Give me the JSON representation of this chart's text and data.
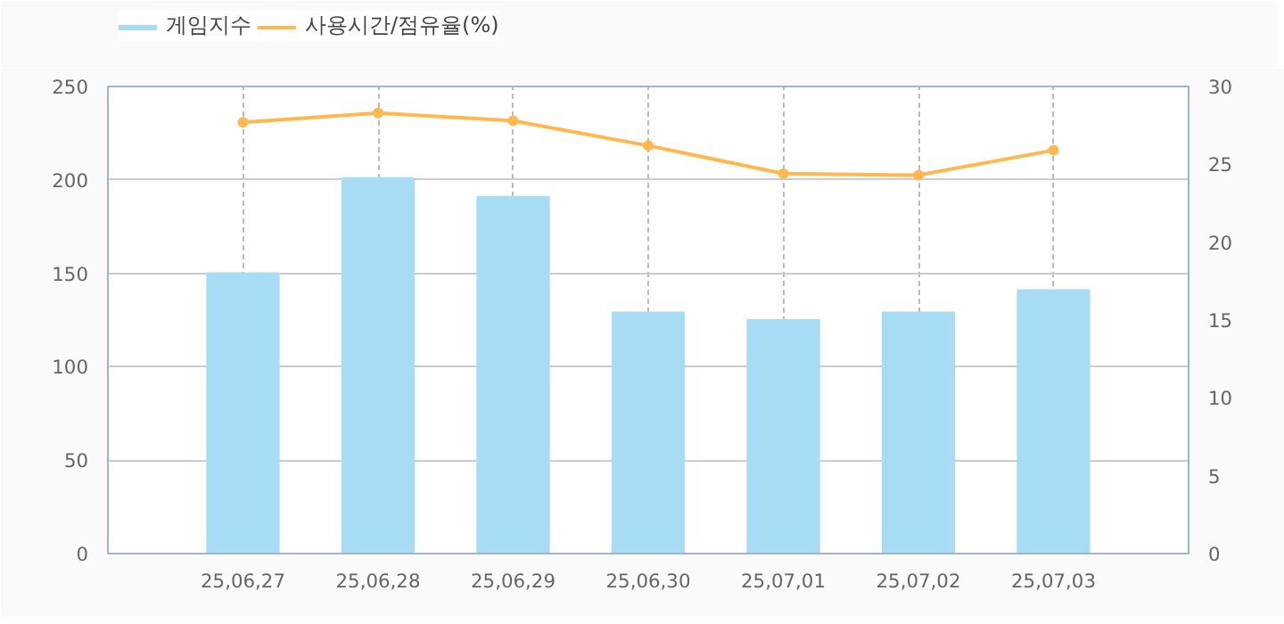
{
  "chart_data": {
    "type": "bar",
    "categories": [
      "25,06,27",
      "25,06,28",
      "25,06,29",
      "25,06,30",
      "25,07,01",
      "25,07,02",
      "25,07,03"
    ],
    "series": [
      {
        "name": "게임지수",
        "color": "#a8dcf5",
        "values": [
          150,
          201,
          191,
          129,
          125,
          129,
          141
        ]
      },
      {
        "name": "사용시간/점유율(%)",
        "type": "line",
        "axis": "y2",
        "color": "#ffb84d",
        "marker": "circle",
        "values": [
          27.7,
          28.3,
          27.8,
          26.2,
          24.4,
          24.3,
          25.9
        ]
      }
    ],
    "ylim": [
      0,
      250
    ],
    "yticks": [
      0,
      50,
      100,
      150,
      200,
      250
    ],
    "y2lim": [
      0,
      30
    ],
    "y2ticks": [
      0,
      5,
      10,
      15,
      20,
      25,
      30
    ],
    "grid": true,
    "legend": "top left"
  }
}
